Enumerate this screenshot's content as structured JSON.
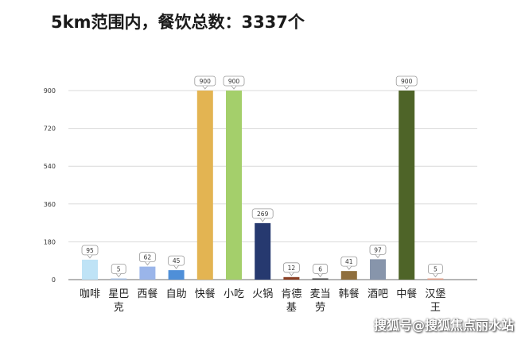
{
  "title": "5km范围内，餐饮总数：3337个",
  "watermark": "搜狐号@搜狐焦点丽水站",
  "chart_data": {
    "type": "bar",
    "title": "5km范围内，餐饮总数：3337个",
    "categories": [
      "咖啡",
      "星巴克",
      "西餐",
      "自助",
      "快餐",
      "小吃",
      "火锅",
      "肯德基",
      "麦当劳",
      "韩餐",
      "酒吧",
      "中餐",
      "汉堡王"
    ],
    "category_lines": [
      [
        "咖啡"
      ],
      [
        "星巴",
        "克"
      ],
      [
        "西餐"
      ],
      [
        "自助"
      ],
      [
        "快餐"
      ],
      [
        "小吃"
      ],
      [
        "火锅"
      ],
      [
        "肯德",
        "基"
      ],
      [
        "麦当",
        "劳"
      ],
      [
        "韩餐"
      ],
      [
        "酒吧"
      ],
      [
        "中餐"
      ],
      [
        "汉堡",
        "王"
      ]
    ],
    "values": [
      95,
      5,
      62,
      45,
      900,
      900,
      269,
      12,
      6,
      41,
      97,
      900,
      5
    ],
    "colors": [
      "#bfe3f6",
      "#a9c3e6",
      "#9ab5ea",
      "#4f8fd8",
      "#e3b452",
      "#a4cf6b",
      "#26396f",
      "#8a3e22",
      "#4a4a4a",
      "#8f6f3d",
      "#8795ab",
      "#4e6428",
      "#e4a08a"
    ],
    "yticks": [
      0,
      180,
      360,
      540,
      720,
      900
    ],
    "ylim": [
      0,
      900
    ],
    "grid": true,
    "xlabel": "",
    "ylabel": ""
  }
}
